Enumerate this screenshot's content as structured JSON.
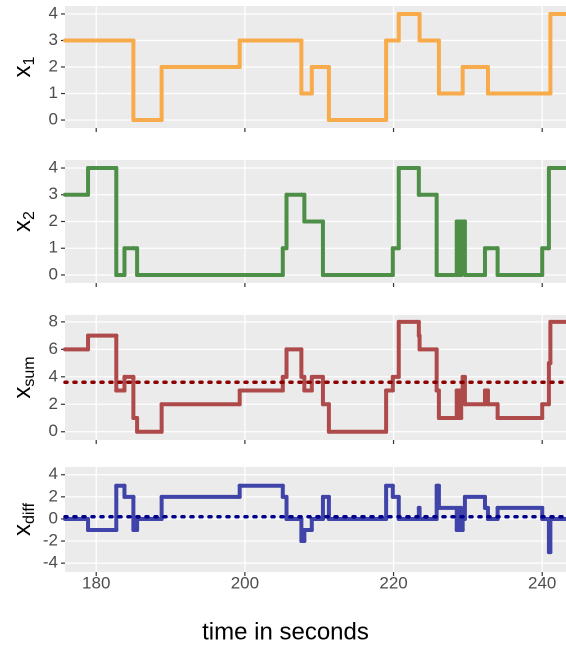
{
  "chart_data": [
    {
      "type": "line",
      "step": "post",
      "y_label": "x",
      "y_label_sub": "1",
      "color": "#F8AB4B",
      "x": [
        175.8,
        178.9,
        182.7,
        183.8,
        185.0,
        185.5,
        188.8,
        199.3,
        205.1,
        205.6,
        207.6,
        208.0,
        209.0,
        210.5,
        211.3,
        219.0,
        219.9,
        220.7,
        223.4,
        223.5,
        225.8,
        226.1,
        228.5,
        228.8,
        229.1,
        229.3,
        229.6,
        232.3,
        232.7,
        234.0,
        240.0,
        240.9,
        241.1
      ],
      "values": [
        3,
        3,
        3,
        3,
        0,
        0,
        2,
        3,
        3,
        3,
        1,
        1,
        2,
        2,
        0,
        3,
        3,
        4,
        4,
        3,
        3,
        1,
        1,
        1,
        1,
        2,
        2,
        2,
        1,
        1,
        1,
        1,
        4
      ],
      "xlim": [
        175.8,
        243.2
      ],
      "xticks": [
        180,
        200,
        220,
        240
      ],
      "ylim": [
        -0.3,
        4.3
      ],
      "yticks": [
        0,
        1,
        2,
        3,
        4
      ],
      "grid": true
    },
    {
      "type": "line",
      "step": "post",
      "y_label": "x",
      "y_label_sub": "2",
      "color": "#4E8F48",
      "x": [
        175.8,
        178.9,
        182.7,
        183.8,
        185.0,
        185.5,
        188.8,
        199.3,
        205.1,
        205.6,
        207.6,
        208.0,
        209.0,
        210.5,
        211.3,
        219.0,
        219.9,
        220.7,
        223.4,
        223.5,
        225.8,
        226.1,
        228.5,
        228.8,
        229.1,
        229.3,
        229.6,
        232.3,
        232.7,
        234.0,
        240.0,
        240.9,
        241.1
      ],
      "values": [
        3,
        4,
        0,
        1,
        1,
        0,
        0,
        0,
        1,
        3,
        3,
        2,
        2,
        0,
        0,
        0,
        1,
        4,
        3,
        3,
        0,
        0,
        2,
        0,
        2,
        2,
        0,
        1,
        1,
        0,
        1,
        4,
        4
      ],
      "xlim": [
        175.8,
        243.2
      ],
      "xticks": [
        180,
        200,
        220,
        240
      ],
      "ylim": [
        -0.3,
        4.3
      ],
      "yticks": [
        0,
        1,
        2,
        3,
        4
      ],
      "grid": true
    },
    {
      "type": "line",
      "step": "post",
      "y_label": "x",
      "y_label_sub": "sum",
      "color": "#AE4A4A",
      "x": [
        175.8,
        178.9,
        182.7,
        183.8,
        185.0,
        185.5,
        188.8,
        199.3,
        205.1,
        205.6,
        207.6,
        208.0,
        209.0,
        210.5,
        211.3,
        219.0,
        219.9,
        220.7,
        223.4,
        223.5,
        225.8,
        226.1,
        228.5,
        228.8,
        229.1,
        229.3,
        229.6,
        232.3,
        232.7,
        234.0,
        240.0,
        240.9,
        241.1
      ],
      "values": [
        6,
        7,
        3,
        4,
        1,
        0,
        2,
        3,
        4,
        6,
        4,
        3,
        4,
        2,
        0,
        3,
        4,
        8,
        7,
        6,
        3,
        1,
        3,
        1,
        3,
        4,
        2,
        3,
        2,
        1,
        2,
        5,
        8
      ],
      "hline": 3.6,
      "hline_color": "#8B0000",
      "xlim": [
        175.8,
        243.2
      ],
      "xticks": [
        180,
        200,
        220,
        240
      ],
      "ylim": [
        -0.6,
        8.5
      ],
      "yticks": [
        0,
        2,
        4,
        6,
        8
      ],
      "grid": true
    },
    {
      "type": "line",
      "step": "post",
      "y_label": "x",
      "y_label_sub": "diff",
      "color": "#4044A8",
      "x": [
        175.8,
        178.9,
        182.7,
        183.8,
        185.0,
        185.5,
        188.8,
        199.3,
        205.1,
        205.6,
        207.6,
        208.0,
        209.0,
        210.5,
        211.3,
        219.0,
        219.9,
        220.7,
        223.4,
        223.5,
        225.8,
        226.1,
        228.5,
        228.8,
        229.1,
        229.3,
        229.6,
        232.3,
        232.7,
        234.0,
        240.0,
        240.9,
        241.1
      ],
      "values": [
        0,
        -1,
        3,
        2,
        -1,
        0,
        2,
        3,
        2,
        0,
        -2,
        -1,
        0,
        2,
        0,
        3,
        2,
        0,
        1,
        0,
        3,
        1,
        -1,
        1,
        -1,
        0,
        2,
        1,
        0,
        1,
        0,
        -3,
        0
      ],
      "hline": 0.2,
      "hline_color": "#00008B",
      "x_label": "time in seconds",
      "xlim": [
        175.8,
        243.2
      ],
      "xticks": [
        180,
        200,
        220,
        240
      ],
      "ylim": [
        -4.8,
        4.7
      ],
      "yticks": [
        -4,
        -2,
        0,
        2,
        4
      ],
      "grid": true
    }
  ]
}
